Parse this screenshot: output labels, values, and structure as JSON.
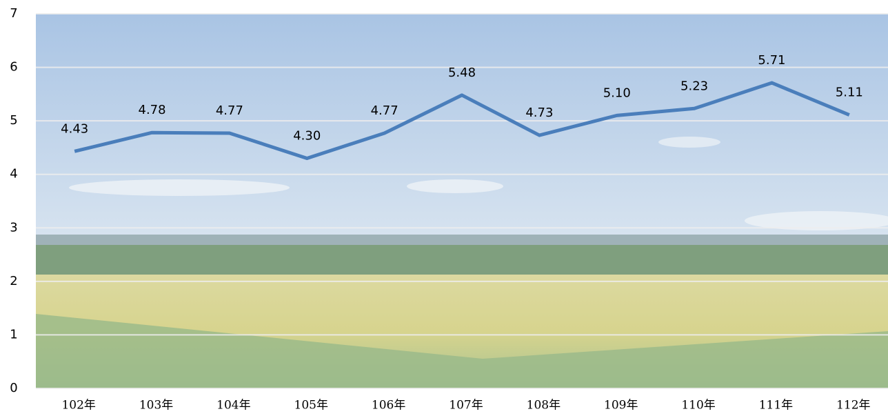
{
  "chart_data": {
    "type": "line",
    "categories": [
      "102年",
      "103年",
      "104年",
      "105年",
      "106年",
      "107年",
      "108年",
      "109年",
      "110年",
      "111年",
      "112年"
    ],
    "series": [
      {
        "color": "#4a7ebb",
        "values": [
          4.43,
          4.78,
          4.77,
          4.3,
          4.77,
          5.48,
          4.73,
          5.1,
          5.23,
          5.71,
          5.11
        ],
        "value_labels": [
          "4.43",
          "4.78",
          "4.77",
          "4.30",
          "4.77",
          "5.48",
          "4.73",
          "5.10",
          "5.23",
          "5.71",
          "5.11"
        ]
      }
    ],
    "ylim": [
      0,
      7
    ],
    "yticks": [
      0,
      1,
      2,
      3,
      4,
      5,
      6,
      7
    ],
    "grid": true
  }
}
